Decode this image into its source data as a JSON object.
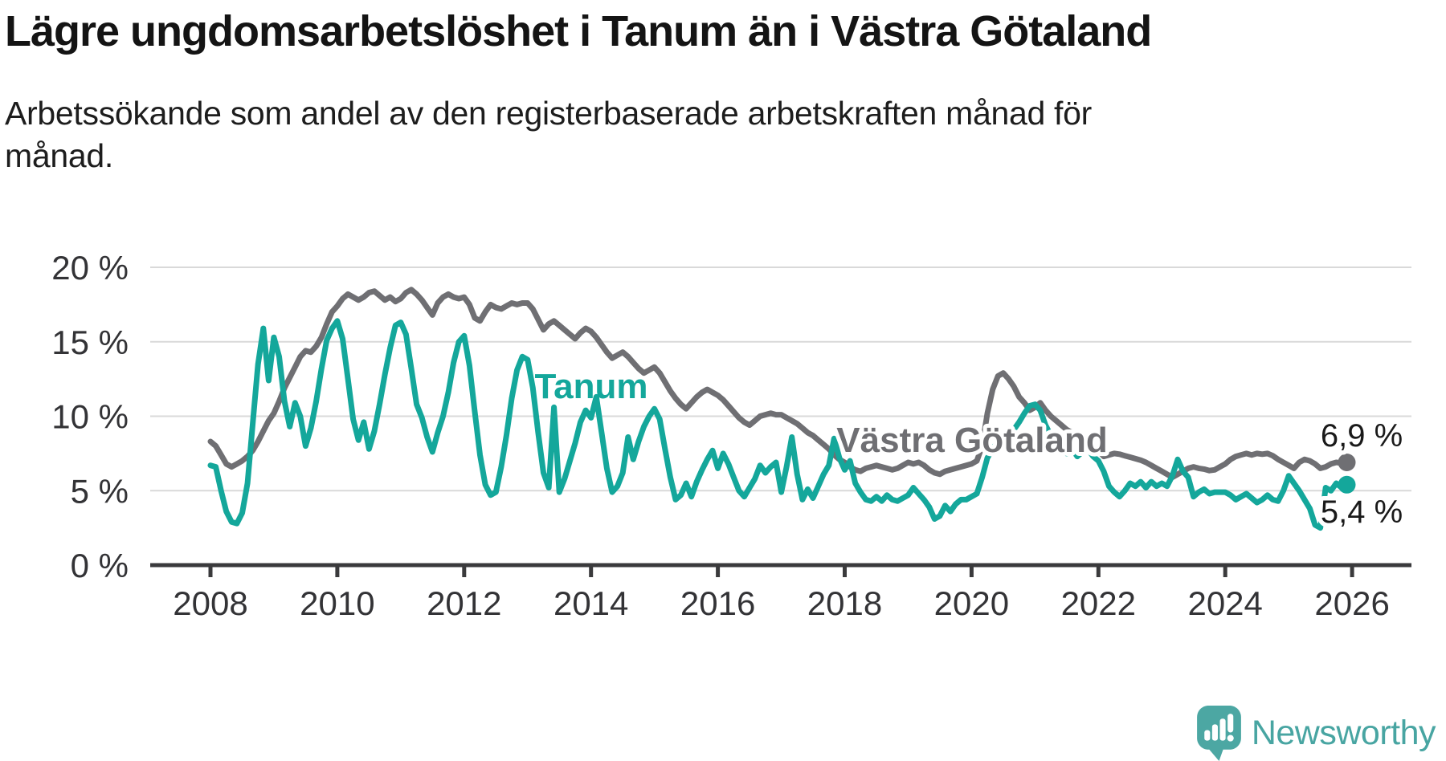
{
  "header": {
    "title": "Lägre ungdomsarbetslöshet i Tanum än i Västra Götaland",
    "subtitle_line1": "Arbetssökande som andel av den registerbaserade arbetskraften månad för",
    "subtitle_line2": "månad."
  },
  "chart_data": {
    "type": "line",
    "title": "Lägre ungdomsarbetslöshet i Tanum än i Västra Götaland",
    "subtitle": "Arbetssökande som andel av den registerbaserade arbetskraften månad för månad.",
    "frequency": "monthly",
    "start": "2008-01",
    "end": "2025-12",
    "grid": true,
    "ylim": [
      0,
      21
    ],
    "y_ticks": [
      {
        "value": 20,
        "label": "20 %"
      },
      {
        "value": 15,
        "label": "15 %"
      },
      {
        "value": 10,
        "label": "10 %"
      },
      {
        "value": 5,
        "label": "5 %"
      },
      {
        "value": 0,
        "label": "0 %"
      }
    ],
    "x_ticks": [
      {
        "value": 2008,
        "label": "2008"
      },
      {
        "value": 2010,
        "label": "2010"
      },
      {
        "value": 2012,
        "label": "2012"
      },
      {
        "value": 2014,
        "label": "2014"
      },
      {
        "value": 2016,
        "label": "2016"
      },
      {
        "value": 2018,
        "label": "2018"
      },
      {
        "value": 2020,
        "label": "2020"
      },
      {
        "value": 2022,
        "label": "2022"
      },
      {
        "value": 2024,
        "label": "2024"
      },
      {
        "value": 2026,
        "label": "2026"
      }
    ],
    "series": [
      {
        "name": "Tanum",
        "color": "#14A79B",
        "end_value": 5.4,
        "end_label": "5,4 %",
        "values": [
          6.7,
          6.6,
          5.0,
          3.6,
          2.9,
          2.8,
          3.5,
          5.5,
          9.5,
          13.5,
          15.9,
          12.4,
          15.3,
          14.0,
          11.0,
          9.3,
          10.9,
          10.0,
          8.0,
          9.2,
          11.0,
          13.2,
          15.1,
          15.9,
          16.4,
          15.2,
          12.5,
          9.8,
          8.4,
          9.6,
          7.8,
          9.0,
          10.8,
          12.8,
          14.6,
          16.1,
          16.3,
          15.5,
          13.2,
          10.8,
          9.9,
          8.6,
          7.6,
          8.9,
          10.0,
          11.6,
          13.6,
          15.0,
          15.4,
          13.4,
          10.3,
          7.4,
          5.4,
          4.7,
          4.9,
          6.6,
          8.7,
          11.2,
          13.1,
          14.0,
          13.8,
          11.9,
          8.9,
          6.2,
          5.2,
          10.6,
          4.9,
          5.8,
          7.0,
          8.2,
          9.6,
          10.4,
          9.9,
          11.3,
          8.9,
          6.5,
          4.9,
          5.3,
          6.2,
          8.6,
          7.1,
          8.3,
          9.3,
          10.0,
          10.5,
          9.8,
          7.8,
          5.9,
          4.4,
          4.7,
          5.5,
          4.6,
          5.6,
          6.4,
          7.1,
          7.7,
          6.5,
          7.5,
          6.8,
          5.9,
          5.0,
          4.6,
          5.2,
          5.8,
          6.7,
          6.2,
          6.6,
          6.9,
          4.9,
          6.6,
          8.6,
          6.1,
          4.4,
          5.1,
          4.5,
          5.3,
          6.1,
          6.7,
          8.5,
          7.2,
          6.4,
          7.0,
          5.5,
          4.9,
          4.4,
          4.3,
          4.6,
          4.3,
          4.7,
          4.4,
          4.3,
          4.5,
          4.7,
          5.2,
          4.8,
          4.4,
          3.9,
          3.1,
          3.3,
          4.0,
          3.6,
          4.1,
          4.4,
          4.4,
          4.6,
          4.8,
          5.9,
          7.2,
          7.8,
          8.3,
          8.0,
          8.6,
          9.1,
          9.6,
          10.2,
          10.7,
          10.8,
          10.4,
          9.4,
          8.7,
          8.3,
          7.9,
          7.5,
          7.8,
          7.3,
          7.6,
          7.8,
          7.3,
          7.0,
          6.3,
          5.3,
          4.9,
          4.6,
          5.0,
          5.5,
          5.3,
          5.6,
          5.2,
          5.6,
          5.3,
          5.5,
          5.3,
          6.0,
          7.1,
          6.3,
          5.9,
          4.6,
          4.9,
          5.1,
          4.8,
          4.9,
          4.9,
          4.9,
          4.7,
          4.4,
          4.6,
          4.8,
          4.5,
          4.2,
          4.4,
          4.7,
          4.4,
          4.3,
          5.0,
          6.0,
          5.5,
          5.0,
          4.4,
          3.8,
          2.7,
          2.5,
          5.2,
          5.0,
          5.5,
          5.2,
          5.4
        ]
      },
      {
        "name": "Västra Götaland",
        "color": "#6F6F73",
        "end_value": 6.9,
        "end_label": "6,9 %",
        "values": [
          8.3,
          8.0,
          7.4,
          6.8,
          6.6,
          6.8,
          7.0,
          7.3,
          7.7,
          8.3,
          9.0,
          9.7,
          10.2,
          11.0,
          11.9,
          12.6,
          13.3,
          14.0,
          14.4,
          14.3,
          14.7,
          15.3,
          16.2,
          17.0,
          17.4,
          17.9,
          18.2,
          18.0,
          17.8,
          18.0,
          18.3,
          18.4,
          18.1,
          17.8,
          18.0,
          17.7,
          17.9,
          18.3,
          18.5,
          18.2,
          17.8,
          17.3,
          16.8,
          17.6,
          18.0,
          18.2,
          18.0,
          17.9,
          18.0,
          17.5,
          16.6,
          16.4,
          17.0,
          17.5,
          17.3,
          17.2,
          17.4,
          17.6,
          17.5,
          17.6,
          17.6,
          17.2,
          16.5,
          15.8,
          16.2,
          16.4,
          16.1,
          15.8,
          15.5,
          15.2,
          15.6,
          15.9,
          15.7,
          15.3,
          14.8,
          14.3,
          13.9,
          14.1,
          14.3,
          14.0,
          13.6,
          13.2,
          12.9,
          13.1,
          13.3,
          12.9,
          12.3,
          11.7,
          11.2,
          10.8,
          10.5,
          10.9,
          11.3,
          11.6,
          11.8,
          11.6,
          11.4,
          11.1,
          10.7,
          10.3,
          9.9,
          9.6,
          9.4,
          9.7,
          10.0,
          10.1,
          10.2,
          10.1,
          10.1,
          9.9,
          9.7,
          9.5,
          9.2,
          8.9,
          8.7,
          8.4,
          8.1,
          7.8,
          7.4,
          7.1,
          6.9,
          6.6,
          6.4,
          6.3,
          6.5,
          6.6,
          6.7,
          6.6,
          6.5,
          6.4,
          6.5,
          6.7,
          6.9,
          6.8,
          6.9,
          6.7,
          6.4,
          6.2,
          6.1,
          6.3,
          6.4,
          6.5,
          6.6,
          6.7,
          6.8,
          7.0,
          8.0,
          10.2,
          11.8,
          12.7,
          12.9,
          12.5,
          12.0,
          11.3,
          10.9,
          10.4,
          10.6,
          10.9,
          10.4,
          10.0,
          9.7,
          9.4,
          9.1,
          8.9,
          8.6,
          8.4,
          8.1,
          7.9,
          7.7,
          7.3,
          7.4,
          7.5,
          7.45,
          7.35,
          7.25,
          7.15,
          7.05,
          6.9,
          6.7,
          6.5,
          6.3,
          6.1,
          5.9,
          6.1,
          6.3,
          6.5,
          6.6,
          6.5,
          6.45,
          6.35,
          6.4,
          6.6,
          6.8,
          7.1,
          7.3,
          7.4,
          7.5,
          7.4,
          7.5,
          7.45,
          7.5,
          7.35,
          7.1,
          6.9,
          6.7,
          6.5,
          6.9,
          7.1,
          7.0,
          6.8,
          6.5,
          6.6,
          6.8,
          6.9,
          6.85,
          6.9
        ]
      }
    ],
    "colors": {
      "grid": "#D9D9D9",
      "axis": "#3A3A3C",
      "tick_text": "#333336",
      "value_text": "#1a1a1a"
    }
  },
  "branding": {
    "logo_text": "Newsworthy",
    "logo_color": "#4CA7A3"
  }
}
